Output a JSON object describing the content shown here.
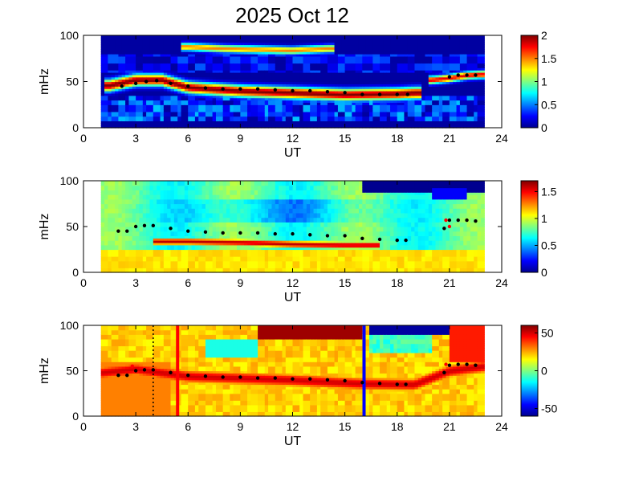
{
  "title": "2025 Oct 12",
  "colors": {
    "background": "#00008f",
    "jet": [
      "#00008f",
      "#0000ff",
      "#0080ff",
      "#00ffff",
      "#80ff80",
      "#ffff00",
      "#ff8000",
      "#ff0000",
      "#800000"
    ],
    "ridge_markers": "#000000",
    "alt_markers": "#ff0000",
    "event_red": "#ff0000",
    "event_blue": "#0000ff"
  },
  "chart_data": [
    {
      "type": "heatmap",
      "panel": "top",
      "xlabel": "UT",
      "ylabel": "mHz",
      "xlim": [
        0,
        24
      ],
      "ylim": [
        0,
        100
      ],
      "xticks": [
        "0",
        "3",
        "6",
        "9",
        "12",
        "15",
        "18",
        "21",
        "24"
      ],
      "yticks": [
        "0",
        "50",
        "100"
      ],
      "data_range_ut": [
        1,
        23
      ],
      "colorbar": {
        "min": 0,
        "max": 2,
        "ticks": [
          "0",
          "0.5",
          "1",
          "1.5",
          "2"
        ]
      },
      "bands": [
        {
          "center_mhz": [
            [
              1.5,
              46
            ],
            [
              3,
              52
            ],
            [
              4.5,
              52
            ],
            [
              6,
              44
            ],
            [
              9,
              40
            ],
            [
              12,
              38
            ],
            [
              15,
              36
            ],
            [
              18,
              37
            ],
            [
              19,
              38
            ]
          ],
          "width_mhz": 12,
          "value": 2.0
        },
        {
          "center_mhz": [
            [
              20,
              52
            ],
            [
              21,
              54
            ],
            [
              22,
              57
            ],
            [
              22.8,
              58
            ]
          ],
          "width_mhz": 8,
          "value": 1.8
        },
        {
          "center_mhz": [
            [
              6,
              88
            ],
            [
              8,
              86
            ],
            [
              10,
              85
            ],
            [
              12,
              84
            ],
            [
              14,
              86
            ]
          ],
          "width_mhz": 8,
          "value": 1.5
        }
      ],
      "ridge_points": [
        [
          2.2,
          45
        ],
        [
          3,
          48
        ],
        [
          3.6,
          50
        ],
        [
          4.2,
          51
        ],
        [
          5,
          48
        ],
        [
          6,
          45
        ],
        [
          7,
          43
        ],
        [
          8,
          42
        ],
        [
          9,
          42
        ],
        [
          10,
          42
        ],
        [
          11,
          41
        ],
        [
          12,
          40
        ],
        [
          13,
          40
        ],
        [
          14,
          39
        ],
        [
          15,
          38
        ],
        [
          16,
          36
        ],
        [
          17,
          36
        ],
        [
          18,
          36
        ],
        [
          18.6,
          36
        ],
        [
          21,
          55
        ],
        [
          21.5,
          57
        ],
        [
          22,
          57
        ],
        [
          22.5,
          57
        ]
      ]
    },
    {
      "type": "heatmap",
      "panel": "middle",
      "xlabel": "UT",
      "ylabel": "mHz",
      "xlim": [
        0,
        24
      ],
      "ylim": [
        0,
        100
      ],
      "xticks": [
        "0",
        "3",
        "6",
        "9",
        "12",
        "15",
        "18",
        "21",
        "24"
      ],
      "yticks": [
        "0",
        "50",
        "100"
      ],
      "data_range_ut": [
        1,
        23
      ],
      "colorbar": {
        "min": 0,
        "max": 1.7,
        "ticks": [
          "0",
          "0.5",
          "1",
          "1.5"
        ]
      },
      "bands": [
        {
          "center_mhz": [
            [
              6,
              34
            ],
            [
              9,
              33
            ],
            [
              12,
              31
            ],
            [
              15,
              30
            ]
          ],
          "width_mhz": 10,
          "value": 1.6
        },
        {
          "center_mhz": [
            [
              3,
              70
            ],
            [
              9,
              70
            ],
            [
              15,
              72
            ]
          ],
          "width_mhz": 20,
          "value": 0.6
        }
      ],
      "ridge_points": [
        [
          2,
          45
        ],
        [
          2.5,
          45
        ],
        [
          3,
          50
        ],
        [
          3.5,
          51
        ],
        [
          4,
          51
        ],
        [
          5,
          48
        ],
        [
          6,
          45
        ],
        [
          7,
          44
        ],
        [
          8,
          43
        ],
        [
          9,
          43
        ],
        [
          10,
          43
        ],
        [
          11,
          42
        ],
        [
          12,
          42
        ],
        [
          13,
          41
        ],
        [
          14,
          40
        ],
        [
          15,
          40
        ],
        [
          16,
          37
        ],
        [
          17,
          36
        ],
        [
          18,
          35
        ],
        [
          18.5,
          35
        ],
        [
          21,
          57
        ],
        [
          21.5,
          57
        ],
        [
          22,
          57
        ],
        [
          22.5,
          56
        ],
        [
          20.7,
          48
        ]
      ],
      "alt_points": [
        [
          20.8,
          57
        ],
        [
          21,
          50
        ]
      ]
    },
    {
      "type": "heatmap",
      "panel": "bottom",
      "xlabel": "UT",
      "ylabel": "mHz",
      "xlim": [
        0,
        24
      ],
      "ylim": [
        0,
        100
      ],
      "xticks": [
        "0",
        "3",
        "6",
        "9",
        "12",
        "15",
        "18",
        "21",
        "24"
      ],
      "yticks": [
        "0",
        "50",
        "100"
      ],
      "data_range_ut": [
        1,
        23
      ],
      "colorbar": {
        "min": -60,
        "max": 60,
        "ticks": [
          "-50",
          "0",
          "50"
        ]
      },
      "vertical_lines_ut": [
        {
          "ut": 5.4,
          "color": "red",
          "style": "solid"
        },
        {
          "ut": 16.1,
          "color": "blue",
          "style": "solid"
        },
        {
          "ut": 4.0,
          "color": "black",
          "style": "dotted"
        }
      ],
      "ridge_points": [
        [
          2,
          45
        ],
        [
          2.5,
          45
        ],
        [
          3,
          50
        ],
        [
          3.5,
          51
        ],
        [
          4,
          51
        ],
        [
          5,
          48
        ],
        [
          6,
          45
        ],
        [
          7,
          44
        ],
        [
          8,
          43
        ],
        [
          9,
          43
        ],
        [
          10,
          42
        ],
        [
          11,
          42
        ],
        [
          12,
          41
        ],
        [
          13,
          41
        ],
        [
          14,
          40
        ],
        [
          15,
          39
        ],
        [
          16,
          37
        ],
        [
          17,
          36
        ],
        [
          18,
          35
        ],
        [
          18.5,
          35
        ],
        [
          20.7,
          48
        ],
        [
          21,
          56
        ],
        [
          21.5,
          57
        ],
        [
          22,
          57
        ],
        [
          22.5,
          56
        ]
      ],
      "alt_points": [
        [
          2.8,
          55
        ],
        [
          20.8,
          57
        ]
      ]
    }
  ]
}
